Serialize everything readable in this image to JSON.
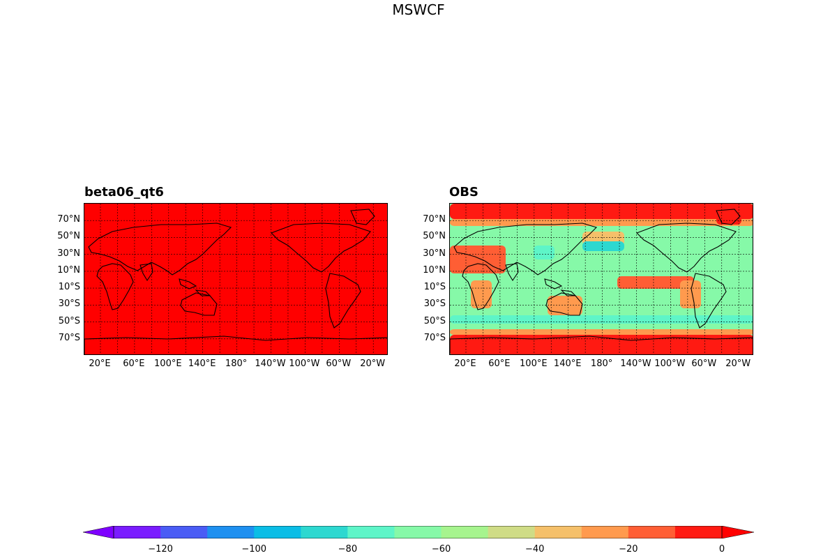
{
  "title": "MSWCF",
  "panels": [
    {
      "id": "model",
      "title": "beta06_qt6"
    },
    {
      "id": "obs",
      "title": "OBS"
    }
  ],
  "lat_labels": [
    "70°N",
    "50°N",
    "30°N",
    "10°N",
    "10°S",
    "30°S",
    "50°S",
    "70°S"
  ],
  "lon_labels": [
    "20°E",
    "60°E",
    "100°E",
    "140°E",
    "180°",
    "140°W",
    "100°W",
    "60°W",
    "20°W"
  ],
  "colorbar": {
    "ticks": [
      "−120",
      "−100",
      "−80",
      "−60",
      "−40",
      "−20",
      "0"
    ],
    "levels": [
      -130,
      -120,
      -110,
      -100,
      -90,
      -80,
      -70,
      -60,
      -50,
      -40,
      -30,
      -20,
      -10,
      0
    ],
    "colors": [
      "#7a1cff",
      "#4a5cf5",
      "#1e90f0",
      "#0abde6",
      "#2dd8d0",
      "#5ef5c8",
      "#86f9a8",
      "#a6f48e",
      "#cfdc86",
      "#f5c06a",
      "#ff9a4e",
      "#ff5e34",
      "#ff1a12"
    ],
    "under_color": "#7e00ff",
    "over_color": "#ff0000",
    "extend": "both"
  },
  "map_colors": {
    "model_fill": "#ff0000",
    "obs_base": "#86f9a8",
    "gridline": "#000000",
    "coastline": "#000000"
  }
}
